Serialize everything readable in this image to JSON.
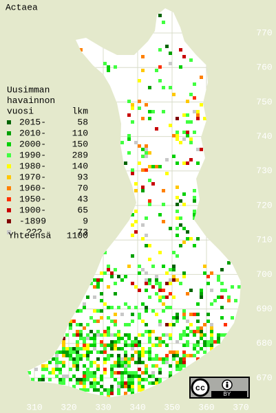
{
  "title": "Actaea",
  "legend": {
    "heading": [
      "Uusimman",
      "havainnon",
      "vuosi"
    ],
    "count_heading": "lkm",
    "items": [
      {
        "label": "2015-",
        "count": 58,
        "color": "#006400"
      },
      {
        "label": "2010-",
        "count": 110,
        "color": "#00a000"
      },
      {
        "label": "2000-",
        "count": 150,
        "color": "#00d000"
      },
      {
        "label": "1990-",
        "count": 289,
        "color": "#40ff40"
      },
      {
        "label": "1980-",
        "count": 140,
        "color": "#ffff00"
      },
      {
        "label": "1970-",
        "count": 93,
        "color": "#ffc800"
      },
      {
        "label": "1960-",
        "count": 70,
        "color": "#ff8000"
      },
      {
        "label": "1950-",
        "count": 43,
        "color": "#ff3000"
      },
      {
        "label": "1900-",
        "count": 65,
        "color": "#c80000"
      },
      {
        "label": "-1899",
        "count": 9,
        "color": "#800000"
      },
      {
        "label": "???",
        "count": 73,
        "color": "#c8c8c8"
      }
    ],
    "total_label": "Yhteensä",
    "total": 1100
  },
  "axes": {
    "xticks": [
      310,
      320,
      330,
      340,
      350,
      360,
      370
    ],
    "yticks": [
      670,
      680,
      690,
      700,
      710,
      720,
      730,
      740,
      750,
      760,
      770
    ]
  },
  "badge": {
    "cc": "cc",
    "by": "BY"
  }
}
